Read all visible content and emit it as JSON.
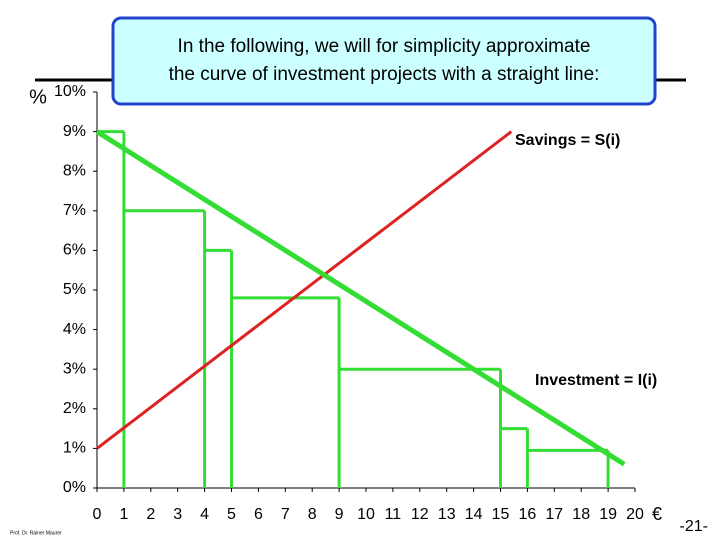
{
  "chart_data": {
    "type": "line",
    "note_lines": [
      "In the following, we will for simplicity approximate",
      "the curve of investment projects with a straight line:"
    ],
    "ylabel": "%",
    "xlabel": "€",
    "xlim": [
      0,
      20
    ],
    "xticks": [
      0,
      1,
      2,
      3,
      4,
      5,
      6,
      7,
      8,
      9,
      10,
      11,
      12,
      13,
      14,
      15,
      16,
      17,
      18,
      19,
      20
    ],
    "ylim": [
      0,
      10
    ],
    "yticks": [
      {
        "value": 0,
        "label": "0%"
      },
      {
        "value": 1,
        "label": "1%"
      },
      {
        "value": 2,
        "label": "2%"
      },
      {
        "value": 3,
        "label": "3%"
      },
      {
        "value": 4,
        "label": "4%"
      },
      {
        "value": 5,
        "label": "5%"
      },
      {
        "value": 6,
        "label": "6%"
      },
      {
        "value": 7,
        "label": "7%"
      },
      {
        "value": 8,
        "label": "8%"
      },
      {
        "value": 9,
        "label": "9%"
      },
      {
        "value": 10,
        "label": "10%"
      }
    ],
    "series": [
      {
        "name": "Savings = S(i)",
        "color": "#dd2222",
        "x": [
          0,
          15.4
        ],
        "values": [
          1,
          9
        ]
      },
      {
        "name": "Investment = I(i)",
        "color": "#33dd33",
        "x": [
          0,
          19.6
        ],
        "values": [
          9,
          0.6
        ]
      }
    ],
    "projects": {
      "color": "#33dd33",
      "x_start": [
        0,
        1,
        4,
        5,
        9,
        15,
        16
      ],
      "x_end": [
        1,
        4,
        5,
        9,
        15,
        16,
        19
      ],
      "values": [
        9,
        7,
        6,
        4.8,
        3,
        1.5,
        0.95
      ]
    },
    "footer": "Prof. Dr. Rainer Maurer",
    "page_number": "-21-"
  }
}
